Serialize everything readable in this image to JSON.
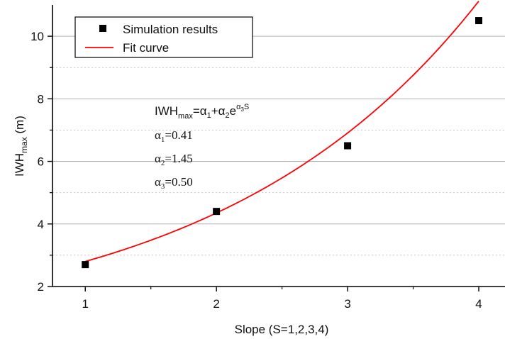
{
  "chart_data": {
    "type": "scatter",
    "xlabel": "Slope (S=1,2,3,4)",
    "ylabel": {
      "main": "IWH",
      "sub": "max",
      "unit": " (m)"
    },
    "xlim": [
      0.75,
      4.2
    ],
    "ylim": [
      2,
      11.0
    ],
    "xticks": [
      1,
      2,
      3,
      4
    ],
    "yticks": [
      2,
      4,
      6,
      8,
      10
    ],
    "grid": "horizontal-y",
    "legend_position": "top-left",
    "series": [
      {
        "name": "Simulation results",
        "kind": "points",
        "marker": "square",
        "color": "#000000",
        "x": [
          1,
          2,
          3,
          4
        ],
        "y": [
          2.7,
          4.4,
          6.5,
          10.5
        ]
      },
      {
        "name": "Fit curve",
        "kind": "curve",
        "color": "#ff0000",
        "model": {
          "a1": 0.41,
          "a2": 1.45,
          "a3": 0.5
        },
        "x_range": [
          1,
          4
        ]
      }
    ],
    "annotation": {
      "equation": {
        "lhs": "IWH",
        "lhs_sub": "max",
        "rhs": "=α",
        "rhs_sub1": "1",
        "plus": "+α",
        "rhs_sub2": "2",
        "e": "e",
        "exp": "α",
        "exp_sub": "3",
        "exp_tail": "S"
      },
      "params": [
        {
          "sym": "α",
          "sub": "1",
          "val": "=0.41"
        },
        {
          "sym": "α",
          "sub": "2",
          "val": "=1.45"
        },
        {
          "sym": "α",
          "sub": "3",
          "val": "=0.50"
        }
      ]
    }
  }
}
